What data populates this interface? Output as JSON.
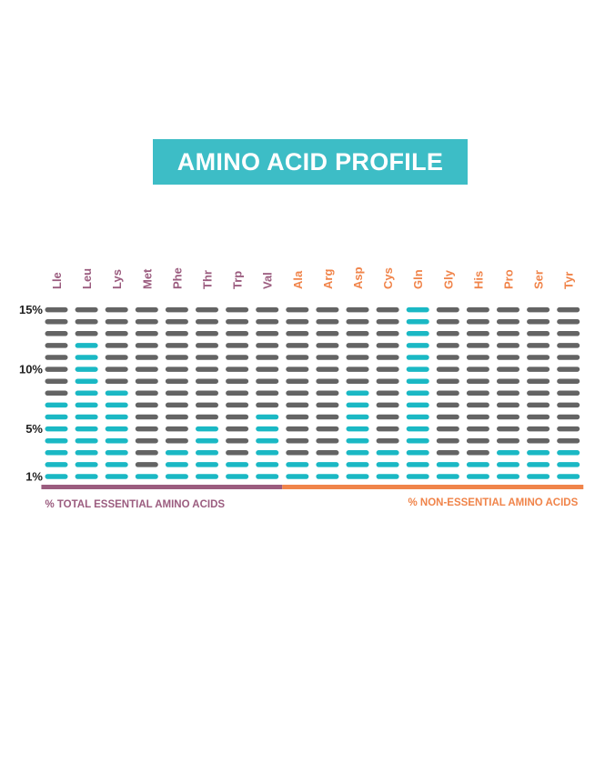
{
  "title": "AMINO ACID PROFILE",
  "colors": {
    "banner": "#3dbdc6",
    "filled": "#1ab8c4",
    "empty": "#646464",
    "essential": "#9b5c7f",
    "nonessential": "#f0844a"
  },
  "groups": {
    "essential_label": "% TOTAL ESSENTIAL AMINO ACIDS",
    "nonessential_label": "% NON-ESSENTIAL AMINO ACIDS"
  },
  "chart_data": {
    "type": "bar",
    "categories": [
      "Lle",
      "Leu",
      "Lys",
      "Met",
      "Phe",
      "Thr",
      "Trp",
      "Val",
      "Ala",
      "Arg",
      "Asp",
      "Cys",
      "Gln",
      "Gly",
      "His",
      "Pro",
      "Ser",
      "Tyr"
    ],
    "category_group": [
      "essential",
      "essential",
      "essential",
      "essential",
      "essential",
      "essential",
      "essential",
      "essential",
      "nonessential",
      "nonessential",
      "nonessential",
      "nonessential",
      "nonessential",
      "nonessential",
      "nonessential",
      "nonessential",
      "nonessential",
      "nonessential"
    ],
    "values": [
      7,
      12,
      8,
      1,
      3,
      5,
      2,
      6,
      2,
      2,
      8,
      3,
      15,
      2,
      2,
      3,
      3,
      3
    ],
    "ylim": [
      1,
      15
    ],
    "yticks": [
      {
        "value": 1,
        "label": "1%"
      },
      {
        "value": 5,
        "label": "5%"
      },
      {
        "value": 10,
        "label": "10%"
      },
      {
        "value": 15,
        "label": "15%"
      }
    ]
  }
}
